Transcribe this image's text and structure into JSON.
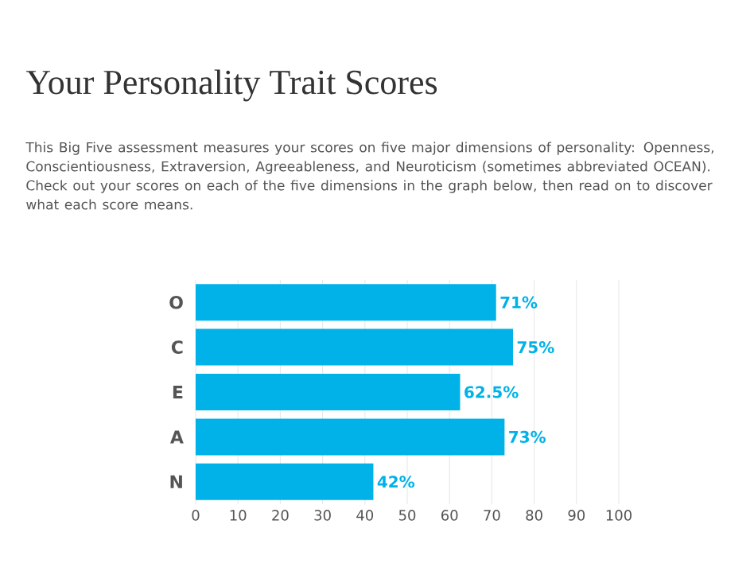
{
  "chart_data": {
    "type": "bar",
    "orientation": "horizontal",
    "title": "Your Personality Trait Scores",
    "subtitle": "This Big Five assessment measures your scores on five major dimensions of personality: Openness, Conscientiousness, Extraversion, Agreeableness, and Neuroticism (sometimes abbreviated OCEAN). Check out your scores on each of the five dimensions in the graph below, then read on to discover what each score means.",
    "categories": [
      "O",
      "C",
      "E",
      "A",
      "N"
    ],
    "values": [
      71,
      75,
      62.5,
      73,
      42
    ],
    "value_labels": [
      "71%",
      "75%",
      "62.5%",
      "73%",
      "42%"
    ],
    "color": "#00b2e8",
    "xlim": [
      0,
      100
    ],
    "xticks": [
      0,
      10,
      20,
      30,
      40,
      50,
      60,
      70,
      80,
      90,
      100
    ],
    "grid": "x"
  }
}
